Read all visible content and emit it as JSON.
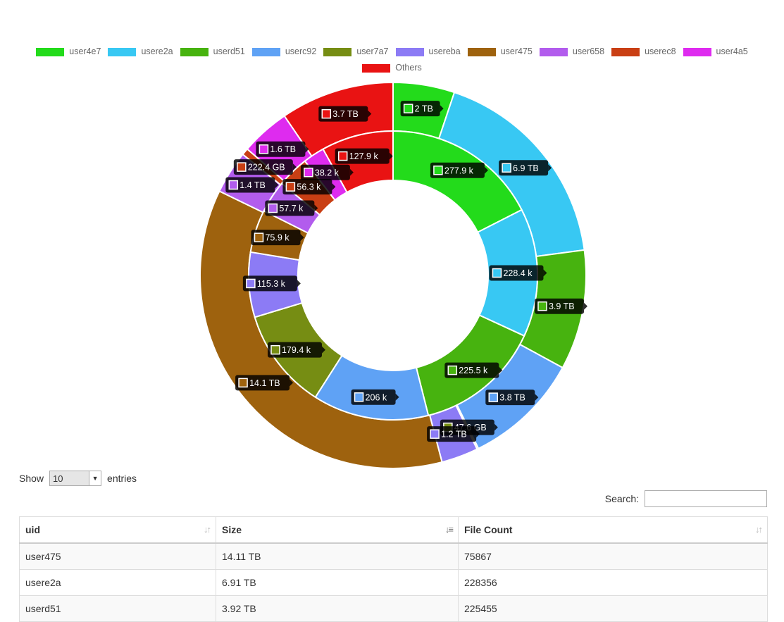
{
  "legend": [
    {
      "label": "user4e7",
      "color": "#23db1b"
    },
    {
      "label": "usere2a",
      "color": "#38c8f3"
    },
    {
      "label": "userd51",
      "color": "#47b30f"
    },
    {
      "label": "userc92",
      "color": "#5fa2f5"
    },
    {
      "label": "user7a7",
      "color": "#768d13"
    },
    {
      "label": "usereba",
      "color": "#8c7bf5"
    },
    {
      "label": "user475",
      "color": "#9e620e"
    },
    {
      "label": "user658",
      "color": "#b25ced"
    },
    {
      "label": "userec8",
      "color": "#c93f14"
    },
    {
      "label": "user4a5",
      "color": "#de2bef"
    },
    {
      "label": "Others",
      "color": "#e91313"
    }
  ],
  "chart_data": {
    "type": "pie",
    "style": "double donut",
    "series": [
      {
        "name": "Size",
        "ring": "outer",
        "values": [
          {
            "uid": "user4e7",
            "value_tb": 2.0,
            "label": "2 TB"
          },
          {
            "uid": "usere2a",
            "value_tb": 6.9,
            "label": "6.9 TB"
          },
          {
            "uid": "userd51",
            "value_tb": 3.9,
            "label": "3.9 TB"
          },
          {
            "uid": "userc92",
            "value_tb": 3.8,
            "label": "3.8 TB"
          },
          {
            "uid": "user7a7",
            "value_tb": 0.0476,
            "label": "47.6 GB"
          },
          {
            "uid": "usereba",
            "value_tb": 1.2,
            "label": "1.2 TB"
          },
          {
            "uid": "user475",
            "value_tb": 14.1,
            "label": "14.1 TB"
          },
          {
            "uid": "user658",
            "value_tb": 1.4,
            "label": "1.4 TB"
          },
          {
            "uid": "userec8",
            "value_tb": 0.2224,
            "label": "222.4 GB"
          },
          {
            "uid": "user4a5",
            "value_tb": 1.6,
            "label": "1.6 TB"
          },
          {
            "uid": "Others",
            "value_tb": 3.7,
            "label": "3.7 TB"
          }
        ]
      },
      {
        "name": "File Count",
        "ring": "inner",
        "values": [
          {
            "uid": "user4e7",
            "value": 277900,
            "label": "277.9 k"
          },
          {
            "uid": "usere2a",
            "value": 228400,
            "label": "228.4 k"
          },
          {
            "uid": "userd51",
            "value": 225500,
            "label": "225.5 k"
          },
          {
            "uid": "userc92",
            "value": 206000,
            "label": "206 k"
          },
          {
            "uid": "user7a7",
            "value": 179400,
            "label": "179.4 k"
          },
          {
            "uid": "usereba",
            "value": 115300,
            "label": "115.3 k"
          },
          {
            "uid": "user475",
            "value": 75900,
            "label": "75.9 k"
          },
          {
            "uid": "user658",
            "value": 57700,
            "label": "57.7 k"
          },
          {
            "uid": "userec8",
            "value": 56300,
            "label": "56.3 k"
          },
          {
            "uid": "user4a5",
            "value": 38200,
            "label": "38.2 k"
          },
          {
            "uid": "Others",
            "value": 127900,
            "label": "127.9 k"
          }
        ]
      }
    ],
    "legend_position": "top"
  },
  "controls": {
    "show_label": "Show",
    "entries_value": "10",
    "entries_label": "entries",
    "search_label": "Search:",
    "search_value": ""
  },
  "table": {
    "columns": [
      "uid",
      "Size",
      "File Count"
    ],
    "sorted_column": "Size",
    "rows": [
      [
        "user475",
        "14.11 TB",
        "75867"
      ],
      [
        "usere2a",
        "6.91 TB",
        "228356"
      ],
      [
        "userd51",
        "3.92 TB",
        "225455"
      ]
    ]
  }
}
